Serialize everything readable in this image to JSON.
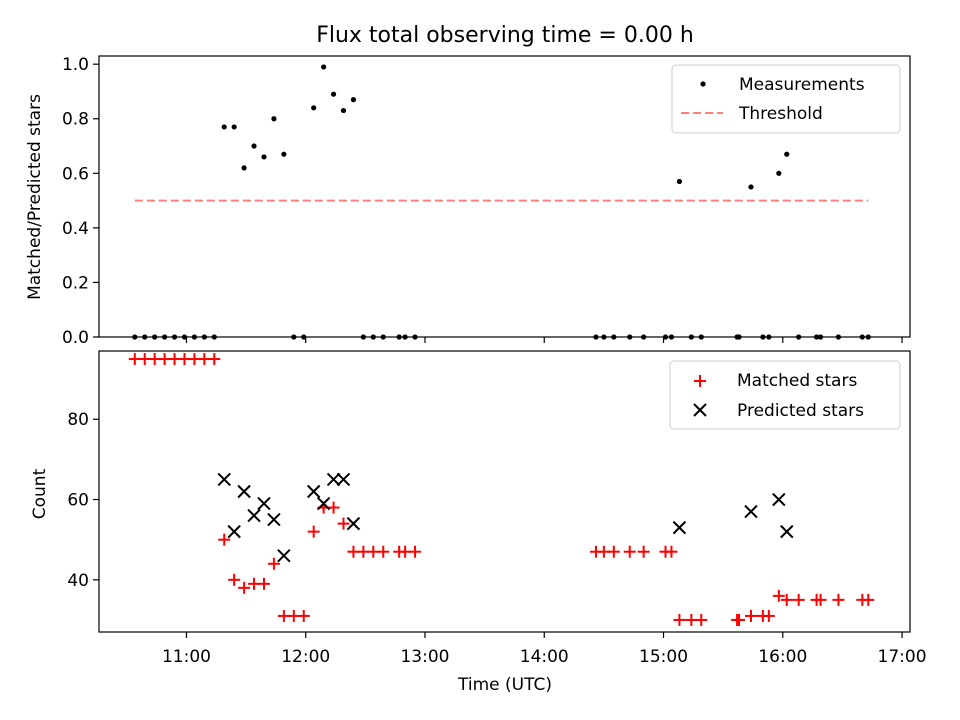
{
  "figure": {
    "title": "Flux total observing time = 0.00 h"
  },
  "chart_data": [
    {
      "type": "scatter",
      "xlabel": "",
      "ylabel": "Matched/Predicted stars",
      "x_unit": "hours UTC",
      "xlim": [
        "10:16",
        "17:04"
      ],
      "ylim": [
        0.0,
        1.03
      ],
      "yticks": [
        "0.0",
        "0.2",
        "0.4",
        "0.6",
        "0.8",
        "1.0"
      ],
      "xticks_shared": true,
      "legend_position": "top-right",
      "series": [
        {
          "name": "Measurements",
          "marker": "dot",
          "color": "#000000",
          "points": [
            {
              "t": "10:34",
              "y": 0.0
            },
            {
              "t": "10:39",
              "y": 0.0
            },
            {
              "t": "10:44",
              "y": 0.0
            },
            {
              "t": "10:49",
              "y": 0.0
            },
            {
              "t": "10:54",
              "y": 0.0
            },
            {
              "t": "10:59",
              "y": 0.0
            },
            {
              "t": "11:04",
              "y": 0.0
            },
            {
              "t": "11:09",
              "y": 0.0
            },
            {
              "t": "11:14",
              "y": 0.0
            },
            {
              "t": "11:19",
              "y": 0.77
            },
            {
              "t": "11:24",
              "y": 0.77
            },
            {
              "t": "11:29",
              "y": 0.62
            },
            {
              "t": "11:34",
              "y": 0.7
            },
            {
              "t": "11:39",
              "y": 0.66
            },
            {
              "t": "11:44",
              "y": 0.8
            },
            {
              "t": "11:49",
              "y": 0.67
            },
            {
              "t": "11:54",
              "y": 0.0
            },
            {
              "t": "11:59",
              "y": 0.0
            },
            {
              "t": "12:04",
              "y": 0.84
            },
            {
              "t": "12:09",
              "y": 0.99
            },
            {
              "t": "12:14",
              "y": 0.89
            },
            {
              "t": "12:19",
              "y": 0.83
            },
            {
              "t": "12:24",
              "y": 0.87
            },
            {
              "t": "12:29",
              "y": 0.0
            },
            {
              "t": "12:34",
              "y": 0.0
            },
            {
              "t": "12:39",
              "y": 0.0
            },
            {
              "t": "12:47",
              "y": 0.0
            },
            {
              "t": "12:50",
              "y": 0.0
            },
            {
              "t": "12:55",
              "y": 0.0
            },
            {
              "t": "14:26",
              "y": 0.0
            },
            {
              "t": "14:30",
              "y": 0.0
            },
            {
              "t": "14:35",
              "y": 0.0
            },
            {
              "t": "14:43",
              "y": 0.0
            },
            {
              "t": "14:50",
              "y": 0.0
            },
            {
              "t": "15:01",
              "y": 0.0
            },
            {
              "t": "15:04",
              "y": 0.0
            },
            {
              "t": "15:08",
              "y": 0.57
            },
            {
              "t": "15:14",
              "y": 0.0
            },
            {
              "t": "15:19",
              "y": 0.0
            },
            {
              "t": "15:37",
              "y": 0.0
            },
            {
              "t": "15:38",
              "y": 0.0
            },
            {
              "t": "15:44",
              "y": 0.55
            },
            {
              "t": "15:50",
              "y": 0.0
            },
            {
              "t": "15:53",
              "y": 0.0
            },
            {
              "t": "15:58",
              "y": 0.6
            },
            {
              "t": "16:02",
              "y": 0.67
            },
            {
              "t": "16:08",
              "y": 0.0
            },
            {
              "t": "16:17",
              "y": 0.0
            },
            {
              "t": "16:19",
              "y": 0.0
            },
            {
              "t": "16:28",
              "y": 0.0
            },
            {
              "t": "16:40",
              "y": 0.0
            },
            {
              "t": "16:43",
              "y": 0.0
            }
          ]
        },
        {
          "name": "Threshold",
          "line_style": "dashed",
          "color": "#ff7f7f",
          "points": [
            {
              "t": "10:34",
              "y": 0.5
            },
            {
              "t": "16:43",
              "y": 0.5
            }
          ]
        }
      ]
    },
    {
      "type": "scatter",
      "xlabel": "Time (UTC)",
      "ylabel": "Count",
      "x_unit": "hours UTC",
      "xlim": [
        "10:16",
        "17:04"
      ],
      "ylim": [
        27,
        97
      ],
      "yticks": [
        "40",
        "60",
        "80"
      ],
      "xticks": [
        "11:00",
        "12:00",
        "13:00",
        "14:00",
        "15:00",
        "16:00",
        "17:00"
      ],
      "legend_position": "top-right",
      "series": [
        {
          "name": "Matched stars",
          "marker": "plus",
          "color": "#ff0000",
          "points": [
            {
              "t": "10:34",
              "y": 95
            },
            {
              "t": "10:39",
              "y": 95
            },
            {
              "t": "10:44",
              "y": 95
            },
            {
              "t": "10:49",
              "y": 95
            },
            {
              "t": "10:54",
              "y": 95
            },
            {
              "t": "10:59",
              "y": 95
            },
            {
              "t": "11:04",
              "y": 95
            },
            {
              "t": "11:09",
              "y": 95
            },
            {
              "t": "11:14",
              "y": 95
            },
            {
              "t": "11:19",
              "y": 50
            },
            {
              "t": "11:24",
              "y": 40
            },
            {
              "t": "11:29",
              "y": 38
            },
            {
              "t": "11:34",
              "y": 39
            },
            {
              "t": "11:39",
              "y": 39
            },
            {
              "t": "11:44",
              "y": 44
            },
            {
              "t": "11:49",
              "y": 31
            },
            {
              "t": "11:54",
              "y": 31
            },
            {
              "t": "11:59",
              "y": 31
            },
            {
              "t": "12:04",
              "y": 52
            },
            {
              "t": "12:09",
              "y": 58
            },
            {
              "t": "12:14",
              "y": 58
            },
            {
              "t": "12:19",
              "y": 54
            },
            {
              "t": "12:24",
              "y": 47
            },
            {
              "t": "12:29",
              "y": 47
            },
            {
              "t": "12:34",
              "y": 47
            },
            {
              "t": "12:39",
              "y": 47
            },
            {
              "t": "12:47",
              "y": 47
            },
            {
              "t": "12:50",
              "y": 47
            },
            {
              "t": "12:55",
              "y": 47
            },
            {
              "t": "14:26",
              "y": 47
            },
            {
              "t": "14:30",
              "y": 47
            },
            {
              "t": "14:35",
              "y": 47
            },
            {
              "t": "14:43",
              "y": 47
            },
            {
              "t": "14:50",
              "y": 47
            },
            {
              "t": "15:01",
              "y": 47
            },
            {
              "t": "15:04",
              "y": 47
            },
            {
              "t": "15:08",
              "y": 30
            },
            {
              "t": "15:14",
              "y": 30
            },
            {
              "t": "15:19",
              "y": 30
            },
            {
              "t": "15:37",
              "y": 30
            },
            {
              "t": "15:38",
              "y": 30
            },
            {
              "t": "15:44",
              "y": 31
            },
            {
              "t": "15:50",
              "y": 31
            },
            {
              "t": "15:53",
              "y": 31
            },
            {
              "t": "15:58",
              "y": 36
            },
            {
              "t": "16:02",
              "y": 35
            },
            {
              "t": "16:08",
              "y": 35
            },
            {
              "t": "16:17",
              "y": 35
            },
            {
              "t": "16:19",
              "y": 35
            },
            {
              "t": "16:28",
              "y": 35
            },
            {
              "t": "16:40",
              "y": 35
            },
            {
              "t": "16:43",
              "y": 35
            }
          ]
        },
        {
          "name": "Predicted stars",
          "marker": "x",
          "color": "#000000",
          "points": [
            {
              "t": "11:19",
              "y": 65
            },
            {
              "t": "11:24",
              "y": 52
            },
            {
              "t": "11:29",
              "y": 62
            },
            {
              "t": "11:34",
              "y": 56
            },
            {
              "t": "11:39",
              "y": 59
            },
            {
              "t": "11:44",
              "y": 55
            },
            {
              "t": "11:49",
              "y": 46
            },
            {
              "t": "12:04",
              "y": 62
            },
            {
              "t": "12:09",
              "y": 59
            },
            {
              "t": "12:14",
              "y": 65
            },
            {
              "t": "12:19",
              "y": 65
            },
            {
              "t": "12:24",
              "y": 54
            },
            {
              "t": "15:08",
              "y": 53
            },
            {
              "t": "15:44",
              "y": 57
            },
            {
              "t": "15:58",
              "y": 60
            },
            {
              "t": "16:02",
              "y": 52
            }
          ]
        }
      ]
    }
  ]
}
